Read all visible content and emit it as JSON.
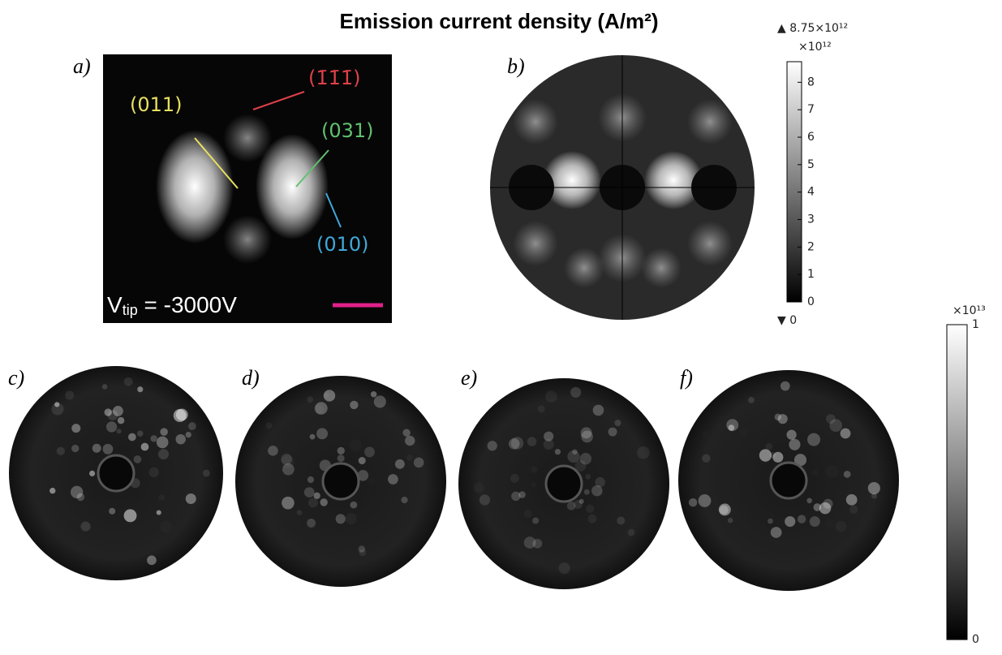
{
  "title": "Emission current density (A/m²)",
  "panels": {
    "a": {
      "label": "a)",
      "annotations": {
        "miller_011": "(011)",
        "miller_111": "(1̄1̄1̄)",
        "miller_031": "(031)",
        "miller_010": "(010)"
      },
      "voltage": {
        "symbol": "V",
        "subscript": "tip",
        "value": " = -3000V"
      }
    },
    "b": {
      "label": "b)"
    },
    "c": {
      "label": "c)"
    },
    "d": {
      "label": "d)"
    },
    "e": {
      "label": "e)"
    },
    "f": {
      "label": "f)"
    }
  },
  "colorbar_top": {
    "max_label": "▲ 8.75×10¹²",
    "min_label": "▼ 0",
    "multiplier": "×10¹²",
    "range": [
      0,
      8.75
    ],
    "ticks": [
      0,
      1,
      2,
      3,
      4,
      5,
      6,
      7,
      8
    ]
  },
  "colorbar_bottom": {
    "multiplier": "×10¹³",
    "range": [
      0,
      1
    ],
    "ticks": [
      0,
      1
    ]
  }
}
